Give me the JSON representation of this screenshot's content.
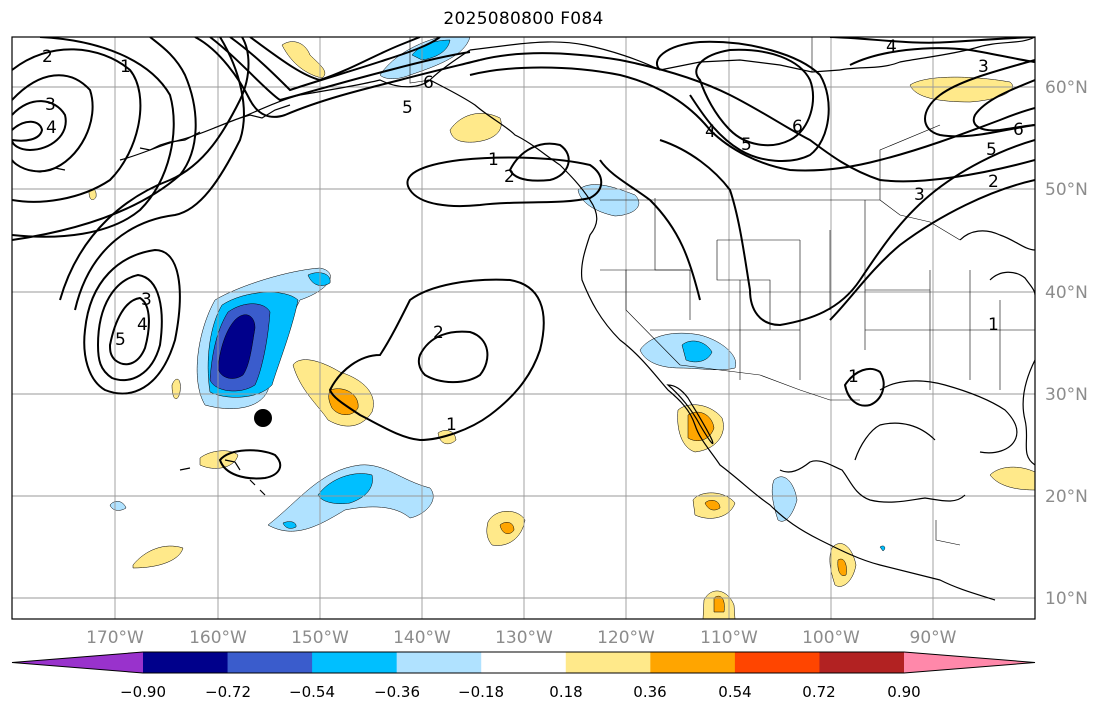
{
  "title": "2025080800 F084",
  "map": {
    "lat_labels": [
      "60°N",
      "50°N",
      "40°N",
      "30°N",
      "20°N",
      "10°N"
    ],
    "lon_labels": [
      "170°W",
      "160°W",
      "150°W",
      "140°W",
      "130°W",
      "120°W",
      "110°W",
      "100°W",
      "90°W"
    ],
    "grid": true,
    "contour_labels": [
      "2",
      "1",
      "3",
      "4",
      "6",
      "5",
      "4",
      "5",
      "6",
      "3",
      "4",
      "6",
      "5",
      "3",
      "2",
      "1",
      "2",
      "1",
      "2",
      "1",
      "3",
      "5",
      "4",
      "1"
    ],
    "marker": "black-dot"
  },
  "colorbar": {
    "ticks": [
      "−0.90",
      "−0.72",
      "−0.54",
      "−0.36",
      "−0.18",
      "0.18",
      "0.36",
      "0.54",
      "0.72",
      "0.90"
    ],
    "colors": [
      "#9932cc",
      "#00008b",
      "#3a5ccc",
      "#00bfff",
      "#b0e2ff",
      "#ffffff",
      "#ffe98a",
      "#ffa500",
      "#ff4500",
      "#b22222",
      "#ff88aa"
    ]
  }
}
